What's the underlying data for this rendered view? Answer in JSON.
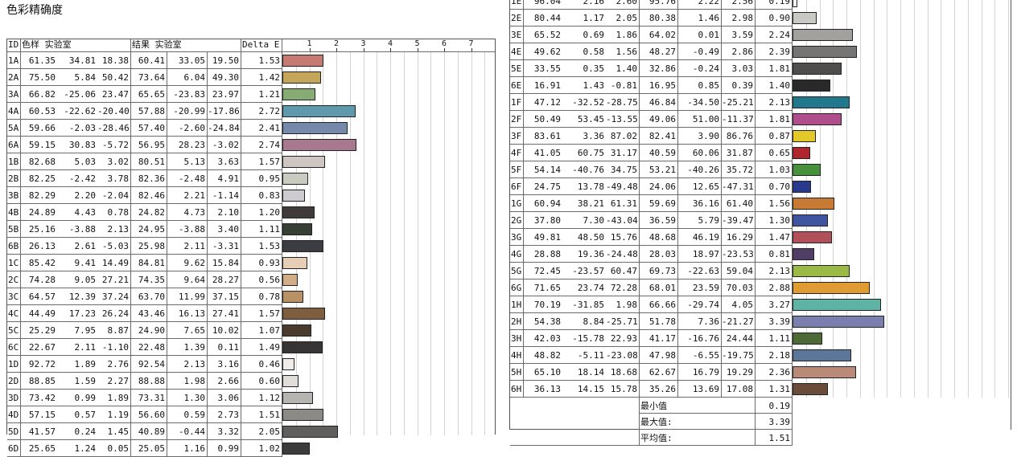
{
  "title": "色彩精确度",
  "left": {
    "headers": {
      "id": "ID",
      "sample": "色样 实验室",
      "result": "结果 实验室",
      "delta": "Delta E"
    },
    "scale_ticks": [
      "1",
      "2",
      "3",
      "4",
      "5",
      "6",
      "7"
    ],
    "rows": [
      {
        "id": "1A",
        "s": [
          "61.35",
          "34.81",
          "18.38"
        ],
        "r": [
          "60.41",
          "33.05",
          "19.50"
        ],
        "de": "1.53",
        "color": "#c57a72"
      },
      {
        "id": "2A",
        "s": [
          "75.50",
          "5.84",
          "50.42"
        ],
        "r": [
          "73.64",
          "6.04",
          "49.30"
        ],
        "de": "1.42",
        "color": "#c3a65a"
      },
      {
        "id": "3A",
        "s": [
          "66.82",
          "-25.06",
          "23.47"
        ],
        "r": [
          "65.65",
          "-23.83",
          "23.97"
        ],
        "de": "1.21",
        "color": "#86ab74"
      },
      {
        "id": "4A",
        "s": [
          "60.53",
          "-22.62",
          "-20.40"
        ],
        "r": [
          "57.88",
          "-20.99",
          "-17.86"
        ],
        "de": "2.72",
        "color": "#5e9aac"
      },
      {
        "id": "5A",
        "s": [
          "59.66",
          "-2.03",
          "-28.46"
        ],
        "r": [
          "57.40",
          "-2.60",
          "-24.84"
        ],
        "de": "2.41",
        "color": "#7689ab"
      },
      {
        "id": "6A",
        "s": [
          "59.15",
          "30.83",
          "-5.72"
        ],
        "r": [
          "56.95",
          "28.23",
          "-3.02"
        ],
        "de": "2.74",
        "color": "#a8788f"
      },
      {
        "id": "1B",
        "s": [
          "82.68",
          "5.03",
          "3.02"
        ],
        "r": [
          "80.51",
          "5.13",
          "3.63"
        ],
        "de": "1.57",
        "color": "#cfc5c2"
      },
      {
        "id": "2B",
        "s": [
          "82.25",
          "-2.42",
          "3.78"
        ],
        "r": [
          "82.36",
          "-2.48",
          "4.91"
        ],
        "de": "0.95",
        "color": "#c9cbc0"
      },
      {
        "id": "3B",
        "s": [
          "82.29",
          "2.20",
          "-2.04"
        ],
        "r": [
          "82.46",
          "2.21",
          "-1.14"
        ],
        "de": "0.83",
        "color": "#cdcbcf"
      },
      {
        "id": "4B",
        "s": [
          "24.89",
          "4.43",
          "0.78"
        ],
        "r": [
          "24.82",
          "4.73",
          "2.10"
        ],
        "de": "1.20",
        "color": "#403a38"
      },
      {
        "id": "5B",
        "s": [
          "25.16",
          "-3.88",
          "2.13"
        ],
        "r": [
          "24.95",
          "-3.88",
          "3.40"
        ],
        "de": "1.11",
        "color": "#373f35"
      },
      {
        "id": "6B",
        "s": [
          "26.13",
          "2.61",
          "-5.03"
        ],
        "r": [
          "25.98",
          "2.11",
          "-3.31"
        ],
        "de": "1.53",
        "color": "#3c3d42"
      },
      {
        "id": "1C",
        "s": [
          "85.42",
          "9.41",
          "14.49"
        ],
        "r": [
          "84.81",
          "9.62",
          "15.84"
        ],
        "de": "0.93",
        "color": "#e8cdb6"
      },
      {
        "id": "2C",
        "s": [
          "74.28",
          "9.05",
          "27.21"
        ],
        "r": [
          "74.35",
          "9.64",
          "28.27"
        ],
        "de": "0.56",
        "color": "#cfae88"
      },
      {
        "id": "3C",
        "s": [
          "64.57",
          "12.39",
          "37.24"
        ],
        "r": [
          "63.70",
          "11.99",
          "37.15"
        ],
        "de": "0.78",
        "color": "#b99166"
      },
      {
        "id": "4C",
        "s": [
          "44.49",
          "17.23",
          "26.24"
        ],
        "r": [
          "43.46",
          "16.13",
          "27.41"
        ],
        "de": "1.57",
        "color": "#7e5e40"
      },
      {
        "id": "5C",
        "s": [
          "25.29",
          "7.95",
          "8.87"
        ],
        "r": [
          "24.90",
          "7.65",
          "10.02"
        ],
        "de": "1.07",
        "color": "#4b3a2e"
      },
      {
        "id": "6C",
        "s": [
          "22.67",
          "2.11",
          "-1.10"
        ],
        "r": [
          "22.48",
          "1.39",
          "0.11"
        ],
        "de": "1.49",
        "color": "#363434"
      },
      {
        "id": "1D",
        "s": [
          "92.72",
          "1.89",
          "2.76"
        ],
        "r": [
          "92.54",
          "2.13",
          "3.16"
        ],
        "de": "0.46",
        "color": "#efecea"
      },
      {
        "id": "2D",
        "s": [
          "88.85",
          "1.59",
          "2.27"
        ],
        "r": [
          "88.88",
          "1.98",
          "2.66"
        ],
        "de": "0.60",
        "color": "#e0ddd9"
      },
      {
        "id": "3D",
        "s": [
          "73.42",
          "0.99",
          "1.89"
        ],
        "r": [
          "73.31",
          "1.30",
          "3.06"
        ],
        "de": "1.12",
        "color": "#b6b4b0"
      },
      {
        "id": "4D",
        "s": [
          "57.15",
          "0.57",
          "1.19"
        ],
        "r": [
          "56.60",
          "0.59",
          "2.73"
        ],
        "de": "1.51",
        "color": "#8b8a87"
      },
      {
        "id": "5D",
        "s": [
          "41.57",
          "0.24",
          "1.45"
        ],
        "r": [
          "40.89",
          "-0.44",
          "3.32"
        ],
        "de": "2.05",
        "color": "#615f5d"
      },
      {
        "id": "6D",
        "s": [
          "25.65",
          "1.24",
          "0.05"
        ],
        "r": [
          "25.05",
          "1.16",
          "0.99"
        ],
        "de": "1.02",
        "color": "#3d3c3c"
      }
    ]
  },
  "right": {
    "rows": [
      {
        "id": "1E",
        "s": [
          "96.04",
          "2.16",
          "2.60"
        ],
        "r": [
          "95.76",
          "2.22",
          "2.56"
        ],
        "de": "0.19",
        "color": "#f6f4f2"
      },
      {
        "id": "2E",
        "s": [
          "80.44",
          "1.17",
          "2.05"
        ],
        "r": [
          "80.38",
          "1.46",
          "2.98"
        ],
        "de": "0.90",
        "color": "#cac8c4"
      },
      {
        "id": "3E",
        "s": [
          "65.52",
          "0.69",
          "1.86"
        ],
        "r": [
          "64.02",
          "0.01",
          "3.59"
        ],
        "de": "2.24",
        "color": "#a2a19d"
      },
      {
        "id": "4E",
        "s": [
          "49.62",
          "0.58",
          "1.56"
        ],
        "r": [
          "48.27",
          "-0.49",
          "2.86"
        ],
        "de": "2.39",
        "color": "#767573"
      },
      {
        "id": "5E",
        "s": [
          "33.55",
          "0.35",
          "1.40"
        ],
        "r": [
          "32.86",
          "-0.24",
          "3.03"
        ],
        "de": "1.81",
        "color": "#4f4e4c"
      },
      {
        "id": "6E",
        "s": [
          "16.91",
          "1.43",
          "-0.81"
        ],
        "r": [
          "16.95",
          "0.85",
          "0.39"
        ],
        "de": "1.40",
        "color": "#2a2929"
      },
      {
        "id": "1F",
        "s": [
          "47.12",
          "-32.52",
          "-28.75"
        ],
        "r": [
          "46.84",
          "-34.50",
          "-25.21"
        ],
        "de": "2.13",
        "color": "#21788c"
      },
      {
        "id": "2F",
        "s": [
          "50.49",
          "53.45",
          "-13.55"
        ],
        "r": [
          "49.06",
          "51.00",
          "-11.37"
        ],
        "de": "1.81",
        "color": "#b04d8c"
      },
      {
        "id": "3F",
        "s": [
          "83.61",
          "3.36",
          "87.02"
        ],
        "r": [
          "82.41",
          "3.90",
          "86.76"
        ],
        "de": "0.87",
        "color": "#e3c829"
      },
      {
        "id": "4F",
        "s": [
          "41.05",
          "60.75",
          "31.17"
        ],
        "r": [
          "40.59",
          "60.06",
          "31.87"
        ],
        "de": "0.65",
        "color": "#b0262f"
      },
      {
        "id": "5F",
        "s": [
          "54.14",
          "-40.76",
          "34.75"
        ],
        "r": [
          "53.21",
          "-40.26",
          "35.72"
        ],
        "de": "1.03",
        "color": "#47913c"
      },
      {
        "id": "6F",
        "s": [
          "24.75",
          "13.78",
          "-49.48"
        ],
        "r": [
          "24.06",
          "12.65",
          "-47.31"
        ],
        "de": "0.70",
        "color": "#293a8c"
      },
      {
        "id": "1G",
        "s": [
          "60.94",
          "38.21",
          "61.31"
        ],
        "r": [
          "59.69",
          "36.16",
          "61.40"
        ],
        "de": "1.56",
        "color": "#c77a33"
      },
      {
        "id": "2G",
        "s": [
          "37.80",
          "7.30",
          "-43.04"
        ],
        "r": [
          "36.59",
          "5.79",
          "-39.47"
        ],
        "de": "1.30",
        "color": "#3f55a0"
      },
      {
        "id": "3G",
        "s": [
          "49.81",
          "48.50",
          "15.76"
        ],
        "r": [
          "48.68",
          "46.19",
          "16.29"
        ],
        "de": "1.47",
        "color": "#b2505a"
      },
      {
        "id": "4G",
        "s": [
          "28.88",
          "19.36",
          "-24.48"
        ],
        "r": [
          "28.03",
          "18.97",
          "-23.53"
        ],
        "de": "0.81",
        "color": "#513e66"
      },
      {
        "id": "5G",
        "s": [
          "72.45",
          "-23.57",
          "60.47"
        ],
        "r": [
          "69.73",
          "-22.63",
          "59.04"
        ],
        "de": "2.13",
        "color": "#9bba45"
      },
      {
        "id": "6G",
        "s": [
          "71.65",
          "23.74",
          "72.28"
        ],
        "r": [
          "68.01",
          "23.59",
          "70.03"
        ],
        "de": "2.88",
        "color": "#de9c33"
      },
      {
        "id": "1H",
        "s": [
          "70.19",
          "-31.85",
          "1.98"
        ],
        "r": [
          "66.66",
          "-29.74",
          "4.05"
        ],
        "de": "3.27",
        "color": "#5fb3a4"
      },
      {
        "id": "2H",
        "s": [
          "54.38",
          "8.84",
          "-25.71"
        ],
        "r": [
          "51.78",
          "7.36",
          "-21.27"
        ],
        "de": "3.39",
        "color": "#7b7fad"
      },
      {
        "id": "3H",
        "s": [
          "42.03",
          "-15.78",
          "22.93"
        ],
        "r": [
          "41.17",
          "-16.76",
          "24.44"
        ],
        "de": "1.11",
        "color": "#4e6a36"
      },
      {
        "id": "4H",
        "s": [
          "48.82",
          "-5.11",
          "-23.08"
        ],
        "r": [
          "47.98",
          "-6.55",
          "-19.75"
        ],
        "de": "2.18",
        "color": "#5b7699"
      },
      {
        "id": "5H",
        "s": [
          "65.10",
          "18.14",
          "18.68"
        ],
        "r": [
          "62.67",
          "16.79",
          "19.29"
        ],
        "de": "2.36",
        "color": "#b98a78"
      },
      {
        "id": "6H",
        "s": [
          "36.13",
          "14.15",
          "15.78"
        ],
        "r": [
          "35.26",
          "13.69",
          "17.08"
        ],
        "de": "1.31",
        "color": "#6a4c3a"
      }
    ],
    "summary": [
      {
        "label": "最小值",
        "value": "0.19"
      },
      {
        "label": "最大值:",
        "value": "3.39"
      },
      {
        "label": "平均值:",
        "value": "1.51"
      }
    ]
  }
}
